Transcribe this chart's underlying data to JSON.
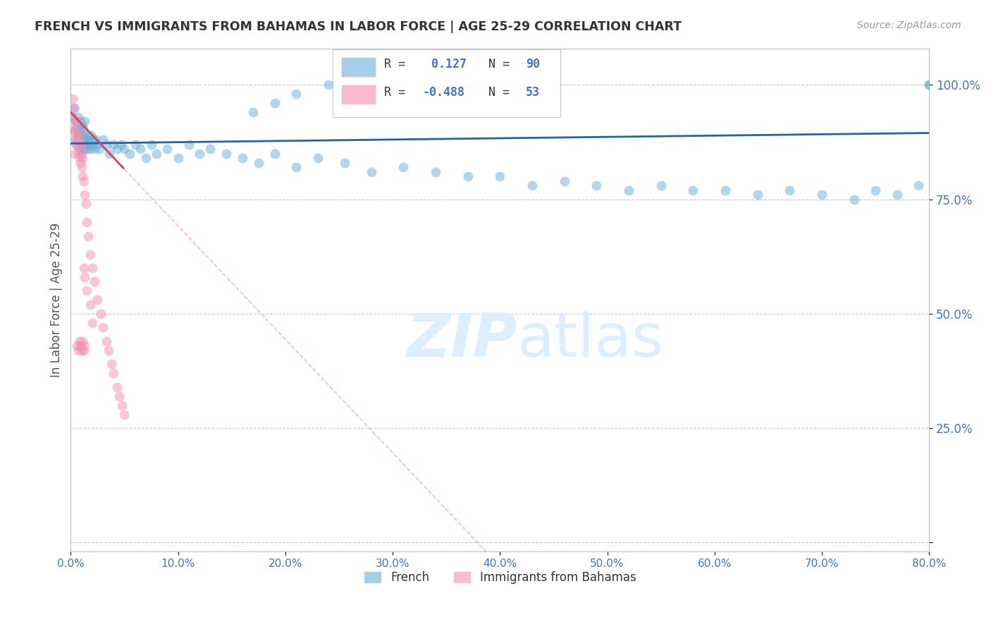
{
  "title": "FRENCH VS IMMIGRANTS FROM BAHAMAS IN LABOR FORCE | AGE 25-29 CORRELATION CHART",
  "source": "Source: ZipAtlas.com",
  "ylabel": "In Labor Force | Age 25-29",
  "xlim": [
    0.0,
    0.8
  ],
  "ylim": [
    -0.02,
    1.08
  ],
  "yticks": [
    0.0,
    0.25,
    0.5,
    0.75,
    1.0
  ],
  "ytick_labels": [
    "",
    "25.0%",
    "50.0%",
    "75.0%",
    "100.0%"
  ],
  "xticks": [
    0.0,
    0.1,
    0.2,
    0.3,
    0.4,
    0.5,
    0.6,
    0.7,
    0.8
  ],
  "xtick_labels": [
    "0.0%",
    "10.0%",
    "20.0%",
    "30.0%",
    "40.0%",
    "50.0%",
    "60.0%",
    "70.0%",
    "80.0%"
  ],
  "french_R": 0.127,
  "french_N": 90,
  "bahamas_R": -0.488,
  "bahamas_N": 53,
  "blue_color": "#6baed6",
  "pink_color": "#f48fb1",
  "trend_blue": "#2166ac",
  "trend_pink": "#d6425a",
  "background": "#ffffff",
  "grid_color": "#c8c8c8",
  "axis_color": "#bbbbbb",
  "title_color": "#333333",
  "source_color": "#999999",
  "ylabel_color": "#555555",
  "right_tick_color": "#4472c4",
  "watermark_color": "#ddeeff",
  "french_x": [
    0.002,
    0.003,
    0.004,
    0.005,
    0.005,
    0.006,
    0.006,
    0.007,
    0.007,
    0.008,
    0.008,
    0.009,
    0.009,
    0.01,
    0.01,
    0.011,
    0.011,
    0.012,
    0.012,
    0.013,
    0.013,
    0.014,
    0.015,
    0.015,
    0.016,
    0.017,
    0.018,
    0.019,
    0.02,
    0.021,
    0.022,
    0.023,
    0.025,
    0.027,
    0.03,
    0.033,
    0.036,
    0.04,
    0.043,
    0.047,
    0.05,
    0.055,
    0.06,
    0.065,
    0.07,
    0.075,
    0.08,
    0.09,
    0.1,
    0.11,
    0.12,
    0.13,
    0.145,
    0.16,
    0.175,
    0.19,
    0.21,
    0.23,
    0.255,
    0.28,
    0.31,
    0.34,
    0.37,
    0.4,
    0.43,
    0.46,
    0.49,
    0.52,
    0.55,
    0.58,
    0.61,
    0.64,
    0.67,
    0.7,
    0.73,
    0.75,
    0.77,
    0.79,
    0.8,
    0.8,
    0.17,
    0.19,
    0.21,
    0.24,
    0.26,
    0.29,
    0.32,
    0.35,
    0.38,
    0.41
  ],
  "french_y": [
    0.93,
    0.95,
    0.9,
    0.88,
    0.92,
    0.87,
    0.91,
    0.89,
    0.93,
    0.86,
    0.9,
    0.88,
    0.92,
    0.85,
    0.89,
    0.87,
    0.91,
    0.86,
    0.9,
    0.88,
    0.92,
    0.87,
    0.86,
    0.89,
    0.87,
    0.88,
    0.86,
    0.89,
    0.87,
    0.88,
    0.86,
    0.88,
    0.87,
    0.86,
    0.88,
    0.87,
    0.85,
    0.87,
    0.86,
    0.87,
    0.86,
    0.85,
    0.87,
    0.86,
    0.84,
    0.87,
    0.85,
    0.86,
    0.84,
    0.87,
    0.85,
    0.86,
    0.85,
    0.84,
    0.83,
    0.85,
    0.82,
    0.84,
    0.83,
    0.81,
    0.82,
    0.81,
    0.8,
    0.8,
    0.78,
    0.79,
    0.78,
    0.77,
    0.78,
    0.77,
    0.77,
    0.76,
    0.77,
    0.76,
    0.75,
    0.77,
    0.76,
    0.78,
    1.0,
    1.0,
    0.94,
    0.96,
    0.98,
    1.0,
    0.97,
    0.95,
    1.0,
    0.98,
    0.96,
    1.0
  ],
  "bahamas_x": [
    0.001,
    0.002,
    0.002,
    0.003,
    0.003,
    0.004,
    0.004,
    0.005,
    0.005,
    0.006,
    0.006,
    0.007,
    0.007,
    0.008,
    0.008,
    0.009,
    0.009,
    0.01,
    0.01,
    0.011,
    0.011,
    0.012,
    0.013,
    0.014,
    0.015,
    0.016,
    0.018,
    0.02,
    0.022,
    0.025,
    0.028,
    0.03,
    0.033,
    0.035,
    0.038,
    0.04,
    0.043,
    0.045,
    0.048,
    0.05,
    0.012,
    0.013,
    0.015,
    0.018,
    0.02,
    0.006,
    0.007,
    0.008,
    0.009,
    0.01,
    0.011,
    0.012,
    0.013
  ],
  "bahamas_y": [
    0.93,
    0.97,
    0.9,
    0.95,
    0.88,
    0.92,
    0.85,
    0.9,
    0.87,
    0.92,
    0.88,
    0.85,
    0.89,
    0.84,
    0.88,
    0.83,
    0.87,
    0.82,
    0.86,
    0.8,
    0.84,
    0.79,
    0.76,
    0.74,
    0.7,
    0.67,
    0.63,
    0.6,
    0.57,
    0.53,
    0.5,
    0.47,
    0.44,
    0.42,
    0.39,
    0.37,
    0.34,
    0.32,
    0.3,
    0.28,
    0.6,
    0.58,
    0.55,
    0.52,
    0.48,
    0.43,
    0.42,
    0.44,
    0.43,
    0.42,
    0.44,
    0.42,
    0.43
  ],
  "legend_R_blue": "R =   0.127   N = 90",
  "legend_R_pink": "R = -0.488   N = 53"
}
